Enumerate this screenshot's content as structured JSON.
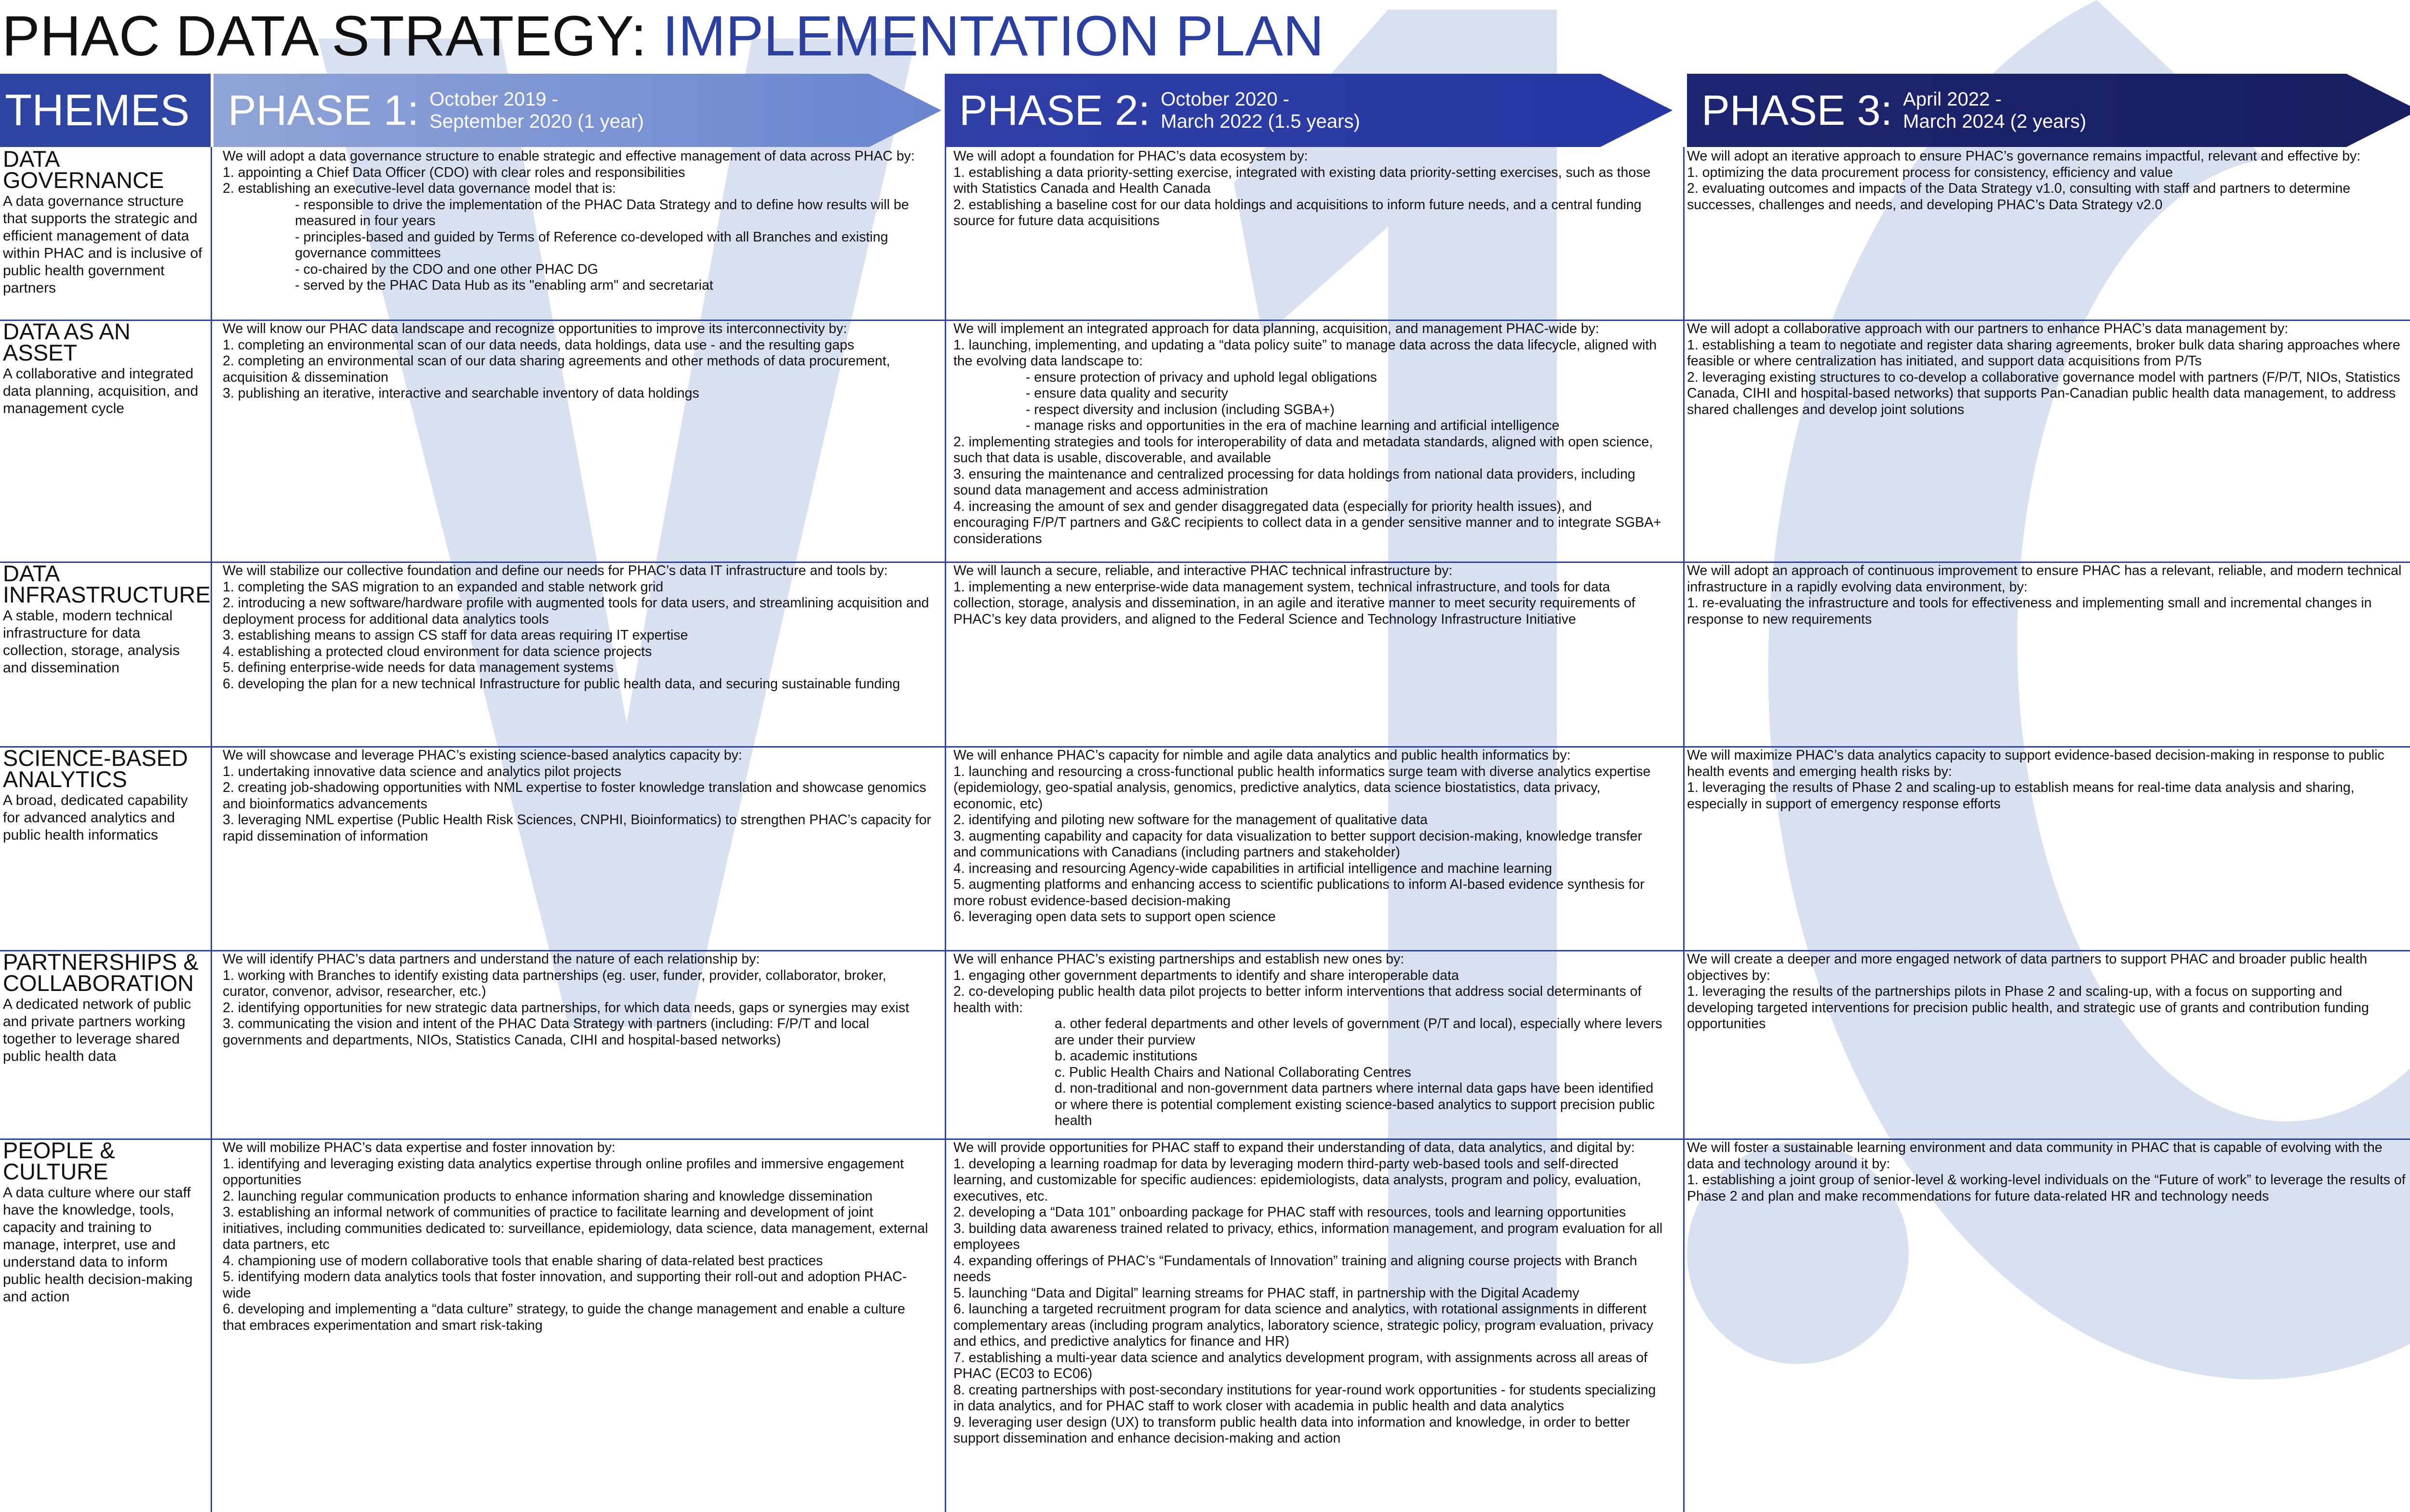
{
  "title": {
    "main": "PHAC DATA STRATEGY: ",
    "accent": "IMPLEMENTATION PLAN"
  },
  "watermark": "V1.0",
  "colors": {
    "accent": "#2a3f9f",
    "themes_header": "#2e44a3",
    "phase1": "#7b93d3",
    "phase2": "#2a3ba4",
    "phase3": "#1b2167",
    "watermark": "#d9e0f0"
  },
  "header": {
    "themes": "THEMES",
    "phases": [
      {
        "name": "PHASE 1:",
        "date1": "October 2019 -",
        "date2": "September 2020 (1 year)"
      },
      {
        "name": "PHASE 2:",
        "date1": "October 2020 -",
        "date2": "March 2022 (1.5 years)"
      },
      {
        "name": "PHASE 3:",
        "date1": "April 2022 -",
        "date2": "March 2024 (2 years)"
      }
    ]
  },
  "rows": [
    {
      "theme": "DATA GOVERNANCE",
      "desc": "A data governance structure that supports the strategic and efficient management of data within PHAC and is inclusive of public health government partners",
      "p1": [
        "We will adopt a data governance structure to enable strategic and effective management of data across PHAC by:",
        "1. appointing a Chief Data Officer (CDO) with clear roles and responsibilities",
        "2. establishing an executive-level data governance model that is:",
        "- responsible to drive the implementation of the PHAC Data Strategy and to define how results will be measured in four years",
        "- principles-based and guided by Terms of Reference co-developed with all Branches and existing governance committees",
        "- co-chaired by the CDO and one other PHAC DG",
        "- served by the PHAC Data Hub as its \"enabling arm\" and secretariat"
      ],
      "p2": [
        "We will adopt a foundation for PHAC’s data ecosystem by:",
        "1. establishing a data priority-setting exercise, integrated with existing data priority-setting exercises, such as those with Statistics Canada and Health Canada",
        "2. establishing a baseline cost for our data holdings and acquisitions to inform future needs, and a central funding source for future data acquisitions"
      ],
      "p3": [
        "We will adopt an iterative approach to ensure PHAC’s governance remains impactful, relevant and effective by:",
        "1. optimizing the data procurement process for consistency, efficiency and value",
        "2. evaluating outcomes and impacts of the Data Strategy v1.0, consulting with staff and partners to determine successes, challenges and needs, and developing PHAC’s Data Strategy v2.0"
      ]
    },
    {
      "theme": "DATA AS AN ASSET",
      "desc": "A collaborative and integrated data planning, acquisition, and management cycle",
      "p1": [
        "We will know our PHAC data landscape and recognize opportunities to improve its interconnectivity by:",
        "1. completing an environmental scan of our data needs, data holdings, data use - and the resulting gaps",
        "2. completing an environmental scan of our data sharing agreements and other methods of data procurement, acquisition & dissemination",
        "3. publishing an iterative, interactive and searchable inventory of data holdings"
      ],
      "p2": [
        "We will implement an integrated approach for data planning, acquisition, and management PHAC-wide by:",
        "1. launching, implementing, and updating a “data policy suite” to manage data across the data lifecycle, aligned with the evolving data landscape to:",
        "- ensure protection of privacy and uphold legal obligations",
        "- ensure data quality and security",
        "- respect diversity and inclusion (including SGBA+)",
        "- manage risks and opportunities in the era of machine learning and artificial intelligence",
        "2. implementing strategies and tools for interoperability of data and metadata standards, aligned with open science, such that data is usable, discoverable, and available",
        "3. ensuring the maintenance and centralized processing for data holdings from national data providers, including sound data management and access administration",
        "4. increasing the amount of sex and gender disaggregated data (especially for priority health issues), and encouraging F/P/T partners and G&C recipients to collect data in a gender sensitive manner and to integrate SGBA+ considerations"
      ],
      "p3": [
        "We will adopt a collaborative approach with our partners to enhance PHAC’s data management by:",
        "1. establishing a team to negotiate and register data sharing agreements, broker bulk data sharing approaches where feasible or where centralization has initiated, and support data acquisitions from P/Ts",
        "2. leveraging existing structures to co-develop a collaborative governance model with partners (F/P/T, NIOs, Statistics Canada, CIHI and hospital-based networks) that supports Pan-Canadian public health data management, to address shared challenges and develop joint solutions"
      ]
    },
    {
      "theme": "DATA INFRASTRUCTURE",
      "desc": "A stable, modern technical infrastructure for data collection, storage, analysis and dissemination",
      "p1": [
        "We will stabilize our collective foundation and define our needs for PHAC’s data IT infrastructure and tools by:",
        "1. completing the SAS migration to an expanded and stable network grid",
        "2. introducing a new software/hardware profile with augmented tools for data users, and streamlining acquisition and deployment process for additional data analytics tools",
        "3. establishing means to assign CS staff for data areas requiring IT expertise",
        "4. establishing a protected cloud environment for data science projects",
        "5. defining enterprise-wide needs for data management systems",
        "6. developing the plan for a new technical Infrastructure for public health data, and securing sustainable funding"
      ],
      "p2": [
        "We will launch a secure, reliable, and interactive PHAC technical infrastructure by:",
        "1. implementing a new enterprise-wide data management system, technical infrastructure, and tools for data collection, storage, analysis and dissemination, in an agile and iterative manner to meet security requirements of PHAC’s key data providers, and aligned to the Federal Science and Technology Infrastructure Initiative"
      ],
      "p3": [
        "We will adopt an approach of continuous improvement to ensure PHAC has a relevant, reliable, and modern technical infrastructure in a rapidly evolving data environment, by:",
        "1. re-evaluating the infrastructure and tools for effectiveness and implementing small and incremental changes in response to new requirements"
      ]
    },
    {
      "theme": "SCIENCE-BASED ANALYTICS",
      "desc": "A broad, dedicated capability for advanced analytics and public health informatics",
      "p1": [
        "We will showcase and leverage PHAC’s existing science-based analytics capacity by:",
        "1. undertaking innovative data science and analytics pilot projects",
        "2. creating job-shadowing opportunities with NML expertise to foster knowledge translation and showcase genomics and bioinformatics advancements",
        "3. leveraging NML expertise (Public Health Risk Sciences, CNPHI, Bioinformatics) to strengthen PHAC’s capacity for rapid dissemination of information"
      ],
      "p2": [
        "We will enhance PHAC’s capacity for nimble and agile data analytics and public health informatics by:",
        "1. launching and resourcing a cross-functional public health informatics surge team with diverse analytics expertise (epidemiology, geo-spatial analysis, genomics, predictive analytics, data science biostatistics, data privacy, economic, etc)",
        "2. identifying and piloting new software for the management of qualitative data",
        "3. augmenting capability and capacity for data visualization to better support decision-making, knowledge transfer and communications with Canadians (including partners and stakeholder)",
        "4. increasing and resourcing Agency-wide capabilities in artificial intelligence and machine learning",
        "5. augmenting platforms and enhancing access to scientific publications to inform AI-based evidence synthesis for more robust evidence-based decision-making",
        "6. leveraging open data sets to support open science"
      ],
      "p3": [
        "We will maximize PHAC’s data analytics capacity to support evidence-based decision-making in response to public health events and emerging health risks by:",
        "1. leveraging the results of Phase 2 and scaling-up to establish means for real-time data analysis and sharing, especially in support of emergency response efforts"
      ]
    },
    {
      "theme": "PARTNERSHIPS & COLLABORATION",
      "desc": "A dedicated network of public and private partners working together to leverage shared public health data",
      "p1": [
        "We will identify PHAC’s data partners and understand the nature of each relationship by:",
        "1. working with Branches to identify existing data partnerships (eg. user, funder, provider, collaborator, broker, curator, convenor, advisor, researcher, etc.)",
        "2. identifying opportunities for new strategic data partnerships, for which data needs, gaps or synergies may exist",
        "3. communicating the vision and intent of the PHAC Data Strategy with partners (including: F/P/T and local governments and departments, NIOs, Statistics Canada, CIHI and hospital-based networks)"
      ],
      "p2": [
        "We will enhance PHAC’s existing partnerships and establish new ones by:",
        "1. engaging other government departments to identify and share interoperable data",
        "2. co-developing public health data pilot projects to better inform interventions that address social determinants of health with:",
        "a. other federal departments and other levels of government (P/T and local), especially where levers are under their purview",
        "b. academic institutions",
        "c. Public Health Chairs and National Collaborating Centres",
        "d. non-traditional and non-government data partners where internal data gaps have been identified or where there is potential complement existing science-based analytics to support precision public health"
      ],
      "p3": [
        "We will create a deeper and more engaged network of data partners to support PHAC and broader public health objectives by:",
        "1. leveraging the results of the partnerships pilots in Phase 2 and scaling-up, with a focus on supporting and developing targeted interventions for precision public health, and strategic use of grants and contribution funding opportunities"
      ]
    },
    {
      "theme": "PEOPLE & CULTURE",
      "desc": "A data culture where our staff have the knowledge, tools, capacity and training to manage, interpret, use and understand data to inform public health decision-making and action",
      "p1": [
        "We will mobilize PHAC’s data expertise and foster innovation by:",
        "1. identifying and leveraging existing data analytics expertise through online profiles and immersive engagement opportunities",
        "2. launching regular communication products to enhance information sharing and knowledge dissemination",
        "3. establishing an informal network of communities of practice to facilitate learning and development of joint initiatives, including communities dedicated to: surveillance, epidemiology, data science, data management, external data partners, etc",
        "4. championing use of modern collaborative tools that enable sharing of data-related best practices",
        "5. identifying modern data analytics tools that foster innovation, and supporting their roll-out and adoption PHAC-wide",
        "6. developing and implementing a “data culture” strategy, to guide the change management and enable a culture that embraces experimentation and smart risk-taking"
      ],
      "p2": [
        "We will provide opportunities for PHAC staff to expand their understanding of data, data analytics, and digital by:",
        "1. developing a learning roadmap for data by leveraging modern third-party web-based tools and self-directed learning, and customizable for specific audiences: epidemiologists, data analysts, program and policy, evaluation, executives, etc.",
        "2. developing a “Data 101” onboarding package for PHAC staff with resources, tools and learning opportunities",
        "3. building data awareness trained related to privacy, ethics, information management, and program evaluation for all employees",
        "4. expanding offerings of PHAC’s “Fundamentals of Innovation” training and aligning course projects with Branch needs",
        "5. launching “Data and Digital” learning streams for PHAC staff, in partnership with the Digital Academy",
        "6. launching a targeted recruitment program for data science and analytics, with rotational assignments in different complementary areas (including program analytics, laboratory science, strategic policy, program evaluation, privacy and ethics, and predictive analytics for finance and HR)",
        "7. establishing a multi-year data science and analytics development program, with assignments across all areas of PHAC (EC03 to EC06)",
        "8. creating partnerships with post-secondary institutions for year-round work opportunities - for students specializing in data analytics, and for PHAC staff to work closer with academia in public health and data analytics",
        "9. leveraging user design (UX) to transform public health data into information and knowledge, in order to better support dissemination and enhance decision-making and action"
      ],
      "p3": [
        "We will foster a sustainable learning environment and data community in PHAC that is capable of evolving with the data and technology around it by:",
        "1. establishing a joint group of senior-level & working-level individuals on the “Future of work” to leverage the results of Phase 2 and plan and make recommendations for future data-related HR and technology needs"
      ]
    }
  ]
}
